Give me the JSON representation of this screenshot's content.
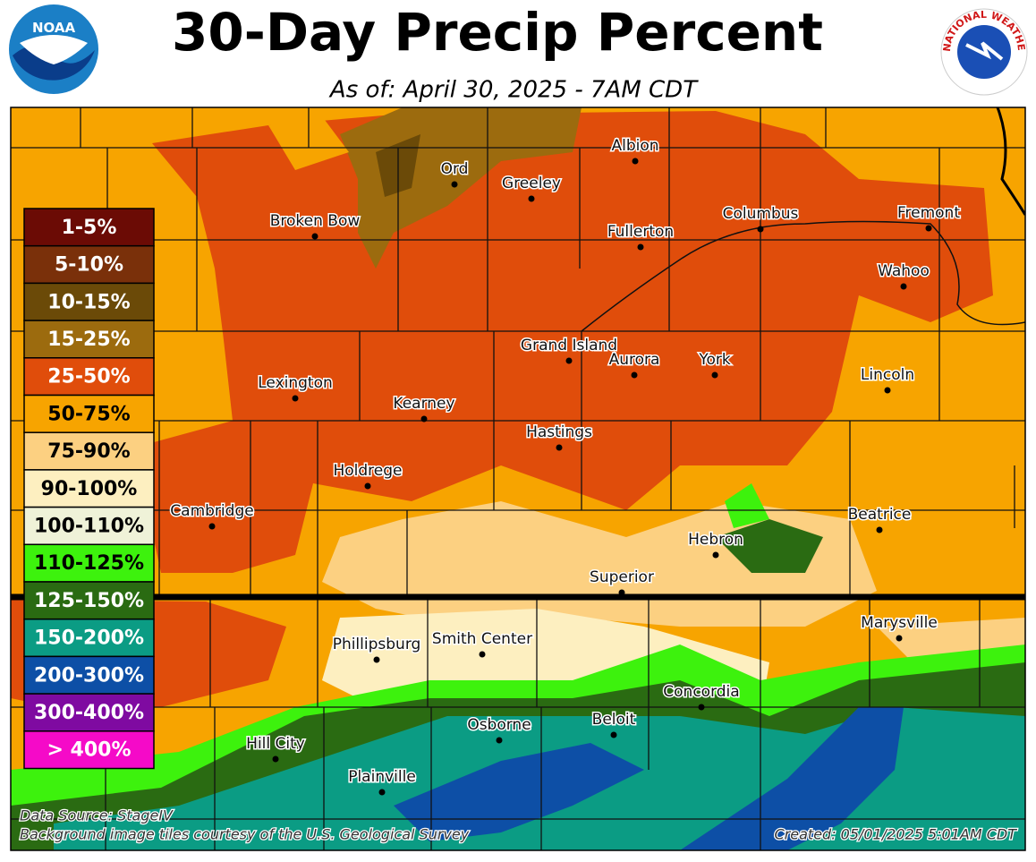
{
  "header": {
    "title": "30-Day Precip Percent",
    "subtitle": "As of: April 30, 2025 - 7AM CDT",
    "left_logo": "NOAA",
    "right_logo": "NATIONAL WEATHER SERVICE"
  },
  "legend": [
    {
      "label": "1-5%",
      "color": "#6b0b05"
    },
    {
      "label": "5-10%",
      "color": "#7a300a"
    },
    {
      "label": "10-15%",
      "color": "#6b4a08"
    },
    {
      "label": "15-25%",
      "color": "#9c6b0e"
    },
    {
      "label": "25-50%",
      "color": "#e04d0b"
    },
    {
      "label": "50-75%",
      "color": "#f7a400"
    },
    {
      "label": "75-90%",
      "color": "#fcd081"
    },
    {
      "label": "90-100%",
      "color": "#fdefc0"
    },
    {
      "label": "100-110%",
      "color": "#eff2d8"
    },
    {
      "label": "110-125%",
      "color": "#3df20d"
    },
    {
      "label": "125-150%",
      "color": "#2a6b12"
    },
    {
      "label": "150-200%",
      "color": "#0b9c84"
    },
    {
      "label": "200-300%",
      "color": "#0d4fa6"
    },
    {
      "label": "300-400%",
      "color": "#7f0aa1"
    },
    {
      "label": "> 400%",
      "color": "#f50ac8"
    }
  ],
  "cities": [
    "Ord",
    "Greeley",
    "Albion",
    "Broken Bow",
    "Columbus",
    "Fremont",
    "Fullerton",
    "Wahoo",
    "Grand Island",
    "Aurora",
    "York",
    "Lincoln",
    "Lexington",
    "Kearney",
    "Hastings",
    "Holdrege",
    "Cambridge",
    "Beatrice",
    "Hebron",
    "Superior",
    "Marysville",
    "Phillipsburg",
    "Smith Center",
    "Concordia",
    "Beloit",
    "Osborne",
    "Hill City",
    "Plainville"
  ],
  "footer": {
    "source": "Data Source: StageIV",
    "credit": "Background image tiles courtesy of the U.S. Geological Survey",
    "created": "Created: 05/01/2025 5:01AM CDT"
  }
}
